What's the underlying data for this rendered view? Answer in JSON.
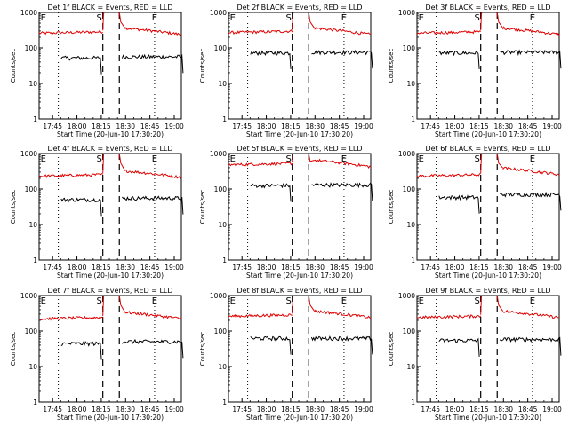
{
  "figure": {
    "background": "#ffffff",
    "axis_color": "#000000",
    "events_color": "#000000",
    "lld_color": "#e00000"
  },
  "chart_data": [
    {
      "type": "line",
      "title": "Det 1f BLACK = Events, RED = LLD",
      "xlabel": "Start Time (20-Jun-10 17:30:20)",
      "ylabel": "Counts/sec",
      "yscale": "log",
      "ylim": [
        1,
        1000
      ],
      "y_tick_labels": [
        "1",
        "10",
        "100",
        "1000"
      ],
      "x_tick_labels": [
        "17:45",
        "18:00",
        "18:15",
        "18:30",
        "18:45",
        "19:00"
      ],
      "markers": [
        "E",
        "S",
        "E"
      ],
      "series": [
        {
          "name": "LLD",
          "level_before": 260,
          "level_after": 280,
          "spike_level": 900
        },
        {
          "name": "Events",
          "level_before": 52,
          "level_after": 56,
          "spike_level": null
        }
      ]
    },
    {
      "type": "line",
      "title": "Det 2f BLACK = Events, RED = LLD",
      "xlabel": "Start Time (20-Jun-10 17:30:20)",
      "ylabel": "Counts/sec",
      "yscale": "log",
      "ylim": [
        1,
        1000
      ],
      "y_tick_labels": [
        "1",
        "10",
        "100",
        "1000"
      ],
      "x_tick_labels": [
        "17:45",
        "18:00",
        "18:15",
        "18:30",
        "18:45",
        "19:00"
      ],
      "markers": [
        "E",
        "S",
        "E"
      ],
      "series": [
        {
          "name": "LLD",
          "level_before": 270,
          "level_after": 280,
          "spike_level": 900
        },
        {
          "name": "Events",
          "level_before": 72,
          "level_after": 75,
          "spike_level": null
        }
      ]
    },
    {
      "type": "line",
      "title": "Det 3f BLACK = Events, RED = LLD",
      "xlabel": "Start Time (20-Jun-10 17:30:20)",
      "ylabel": "Counts/sec",
      "yscale": "log",
      "ylim": [
        1,
        1000
      ],
      "y_tick_labels": [
        "1",
        "10",
        "100",
        "1000"
      ],
      "x_tick_labels": [
        "17:45",
        "18:00",
        "18:15",
        "18:30",
        "18:45",
        "19:00"
      ],
      "markers": [
        "E",
        "S",
        "E"
      ],
      "series": [
        {
          "name": "LLD",
          "level_before": 260,
          "level_after": 280,
          "spike_level": 900
        },
        {
          "name": "Events",
          "level_before": 72,
          "level_after": 75,
          "spike_level": null
        }
      ]
    },
    {
      "type": "line",
      "title": "Det 4f BLACK = Events, RED = LLD",
      "xlabel": "Start Time (20-Jun-10 17:30:20)",
      "ylabel": "Counts/sec",
      "yscale": "log",
      "ylim": [
        1,
        1000
      ],
      "y_tick_labels": [
        "1",
        "10",
        "100",
        "1000"
      ],
      "x_tick_labels": [
        "17:45",
        "18:00",
        "18:15",
        "18:30",
        "18:45",
        "19:00"
      ],
      "markers": [
        "E",
        "S",
        "E"
      ],
      "series": [
        {
          "name": "LLD",
          "level_before": 230,
          "level_after": 250,
          "spike_level": 900
        },
        {
          "name": "Events",
          "level_before": 50,
          "level_after": 55,
          "spike_level": null
        }
      ]
    },
    {
      "type": "line",
      "title": "Det 5f BLACK = Events, RED = LLD",
      "xlabel": "Start Time (20-Jun-10 17:30:20)",
      "ylabel": "Counts/sec",
      "yscale": "log",
      "ylim": [
        1,
        1000
      ],
      "y_tick_labels": [
        "1",
        "10",
        "100",
        "1000"
      ],
      "x_tick_labels": [
        "17:45",
        "18:00",
        "18:15",
        "18:30",
        "18:45",
        "19:00"
      ],
      "markers": [
        "E",
        "S",
        "E"
      ],
      "series": [
        {
          "name": "LLD",
          "level_before": 480,
          "level_after": 500,
          "spike_level": 1000
        },
        {
          "name": "Events",
          "level_before": 125,
          "level_after": 130,
          "spike_level": null
        }
      ]
    },
    {
      "type": "line",
      "title": "Det 6f BLACK = Events, RED = LLD",
      "xlabel": "Start Time (20-Jun-10 17:30:20)",
      "ylabel": "Counts/sec",
      "yscale": "log",
      "ylim": [
        1,
        1000
      ],
      "y_tick_labels": [
        "1",
        "10",
        "100",
        "1000"
      ],
      "x_tick_labels": [
        "17:45",
        "18:00",
        "18:15",
        "18:30",
        "18:45",
        "19:00"
      ],
      "markers": [
        "E",
        "S",
        "E"
      ],
      "series": [
        {
          "name": "LLD",
          "level_before": 230,
          "level_after": 300,
          "spike_level": 900
        },
        {
          "name": "Events",
          "level_before": 58,
          "level_after": 70,
          "spike_level": null
        }
      ]
    },
    {
      "type": "line",
      "title": "Det 7f BLACK = Events, RED = LLD",
      "xlabel": "Start Time (20-Jun-10 17:30:20)",
      "ylabel": "Counts/sec",
      "yscale": "log",
      "ylim": [
        1,
        1000
      ],
      "y_tick_labels": [
        "1",
        "10",
        "100",
        "1000"
      ],
      "x_tick_labels": [
        "17:45",
        "18:00",
        "18:15",
        "18:30",
        "18:45",
        "19:00"
      ],
      "markers": [
        "E",
        "S",
        "E"
      ],
      "series": [
        {
          "name": "LLD",
          "level_before": 220,
          "level_after": 260,
          "spike_level": 900
        },
        {
          "name": "Events",
          "level_before": 44,
          "level_after": 50,
          "spike_level": null
        }
      ]
    },
    {
      "type": "line",
      "title": "Det 8f BLACK = Events, RED = LLD",
      "xlabel": "Start Time (20-Jun-10 17:30:20)",
      "ylabel": "Counts/sec",
      "yscale": "log",
      "ylim": [
        1,
        1000
      ],
      "y_tick_labels": [
        "1",
        "10",
        "100",
        "1000"
      ],
      "x_tick_labels": [
        "17:45",
        "18:00",
        "18:15",
        "18:30",
        "18:45",
        "19:00"
      ],
      "markers": [
        "E",
        "S",
        "E"
      ],
      "series": [
        {
          "name": "LLD",
          "level_before": 260,
          "level_after": 280,
          "spike_level": 900
        },
        {
          "name": "Events",
          "level_before": 62,
          "level_after": 62,
          "spike_level": null
        }
      ]
    },
    {
      "type": "line",
      "title": "Det 9f BLACK = Events, RED = LLD",
      "xlabel": "Start Time (20-Jun-10 17:30:20)",
      "ylabel": "Counts/sec",
      "yscale": "log",
      "ylim": [
        1,
        1000
      ],
      "y_tick_labels": [
        "1",
        "10",
        "100",
        "1000"
      ],
      "x_tick_labels": [
        "17:45",
        "18:00",
        "18:15",
        "18:30",
        "18:45",
        "19:00"
      ],
      "markers": [
        "E",
        "S",
        "E"
      ],
      "series": [
        {
          "name": "LLD",
          "level_before": 240,
          "level_after": 280,
          "spike_level": 900
        },
        {
          "name": "Events",
          "level_before": 54,
          "level_after": 58,
          "spike_level": null
        }
      ]
    }
  ]
}
